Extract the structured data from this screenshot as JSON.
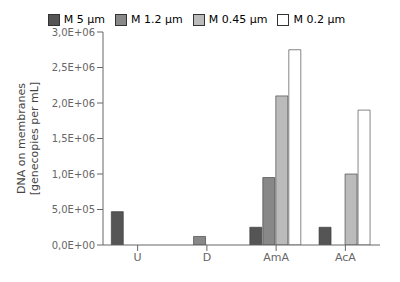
{
  "chart_data": {
    "type": "bar",
    "ylabel": "DNA on membranes\n[genecopies per mL]",
    "categories": [
      "U",
      "D",
      "AmA",
      "AcA"
    ],
    "series": [
      {
        "name": "M 5 μm",
        "color": "#555555",
        "values": [
          470000,
          0,
          250000,
          250000
        ]
      },
      {
        "name": "M 1.2 μm",
        "color": "#888888",
        "values": [
          0,
          120000,
          950000,
          0
        ]
      },
      {
        "name": "M 0.45 μm",
        "color": "#bbbbbb",
        "values": [
          0,
          0,
          2100000,
          1000000
        ]
      },
      {
        "name": "M 0.2 μm",
        "color": "#ffffff",
        "values": [
          0,
          0,
          2750000,
          1900000
        ]
      }
    ],
    "ylim": [
      0,
      3000000
    ],
    "yticks": [
      {
        "value": 0,
        "label": "0,0E+00"
      },
      {
        "value": 500000,
        "label": "5,0E+05"
      },
      {
        "value": 1000000,
        "label": "1,0E+06"
      },
      {
        "value": 1500000,
        "label": "1,5E+06"
      },
      {
        "value": 2000000,
        "label": "2,0E+06"
      },
      {
        "value": 2500000,
        "label": "2,5E+06"
      },
      {
        "value": 3000000,
        "label": "3,0E+06"
      }
    ],
    "grid": false,
    "legend": "top"
  }
}
